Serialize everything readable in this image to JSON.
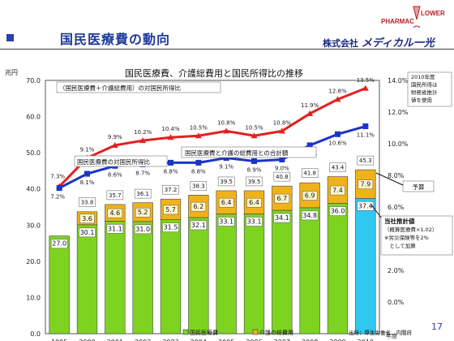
{
  "header": {
    "title": "国民医療費の動向",
    "company_prefix": "株式会社",
    "company_brand": "メディカル一光",
    "logo_text_left": "PHARMAC",
    "logo_text_right": "LOWER",
    "page_number": "17"
  },
  "colors": {
    "medical_bar": "#7ed321",
    "care_bar": "#f0b21a",
    "projection_bar": "#30c8f0",
    "red_line": "#e52020",
    "blue_line": "#1a35c8"
  },
  "chart_data": {
    "type": "bar",
    "title": "国民医療費、介護総費用と国民所得比の推移",
    "left_axis_unit": "兆円",
    "x_axis_unit": "年度",
    "ylim": [
      0,
      70
    ],
    "y2lim": [
      -2,
      14
    ],
    "y_ticks": [
      "0.0",
      "10.0",
      "20.0",
      "30.0",
      "40.0",
      "50.0",
      "60.0",
      "70.0"
    ],
    "y2_ticks": [
      "0.0%",
      "2.0%",
      "4.0%",
      "6.0%",
      "8.0%",
      "10.0%",
      "12.0%",
      "14.0%"
    ],
    "categories": [
      "1995",
      "2000",
      "2001",
      "2002",
      "2003",
      "2004",
      "2005",
      "2006",
      "2007",
      "2008",
      "2009",
      "2010"
    ],
    "series": [
      {
        "name": "国民医療費",
        "values": [
          27.0,
          30.1,
          31.1,
          31.0,
          31.5,
          32.1,
          33.1,
          33.1,
          34.1,
          34.8,
          36.0,
          37.4
        ],
        "labels": [
          "27.0",
          "30.1",
          "31.1",
          "31.0",
          "31.5",
          "32.1",
          "33.1",
          "33.1",
          "34.1",
          "34.8",
          "36.0",
          "37.4"
        ]
      },
      {
        "name": "介護の総費用",
        "values": [
          null,
          3.6,
          4.6,
          5.2,
          5.7,
          6.2,
          6.4,
          6.4,
          6.7,
          6.9,
          7.4,
          7.9
        ],
        "labels": [
          "",
          "3.6",
          "4.6",
          "5.2",
          "5.7",
          "6.2",
          "6.4",
          "6.4",
          "6.7",
          "6.9",
          "7.4",
          "7.9"
        ]
      }
    ],
    "totals": [
      null,
      33.8,
      35.7,
      36.1,
      37.2,
      38.3,
      39.5,
      39.5,
      40.8,
      41.8,
      43.4,
      45.3
    ],
    "totals_labels": [
      "",
      "33.8",
      "35.7",
      "36.1",
      "37.2",
      "38.3",
      "39.5",
      "39.5",
      "40.8",
      "41.8",
      "43.4",
      "45.3"
    ],
    "line_series": [
      {
        "name": "（国民医療費＋介護総費用）の対国民所得比",
        "values": [
          7.3,
          9.1,
          9.9,
          10.2,
          10.4,
          10.5,
          10.8,
          10.5,
          10.8,
          11.9,
          12.8,
          13.5
        ],
        "labels": [
          "7.3%",
          "9.1%",
          "9.9%",
          "10.2%",
          "10.4%",
          "10.5%",
          "10.8%",
          "10.5%",
          "10.8%",
          "11.9%",
          "12.8%",
          "13.5%"
        ]
      },
      {
        "name": "国民医療費の対国民所得比",
        "values": [
          7.2,
          8.1,
          8.6,
          8.7,
          8.8,
          8.8,
          9.1,
          8.9,
          9.0,
          9.9,
          10.6,
          11.1
        ],
        "labels": [
          "7.2%",
          "8.1%",
          "8.6%",
          "8.7%",
          "8.8%",
          "8.8%",
          "9.1%",
          "8.9%",
          "9.0%",
          "9.9%",
          "10.6%",
          "11.1%"
        ]
      }
    ],
    "callouts": {
      "total_sum": "国民医療費と介護の総費用との合計額",
      "note_2010": [
        "2010年度",
        "国民所得は",
        "財務省推計",
        "値を使用"
      ],
      "forecast": "予算",
      "estimate": [
        "当社推計値",
        "（概算医療費×1.02）",
        "※労災保険等を2%",
        "　として加算"
      ]
    },
    "legend": [
      "国民医療費",
      "介護の総費用"
    ],
    "source": "出所：厚生労働省、内閣府"
  }
}
